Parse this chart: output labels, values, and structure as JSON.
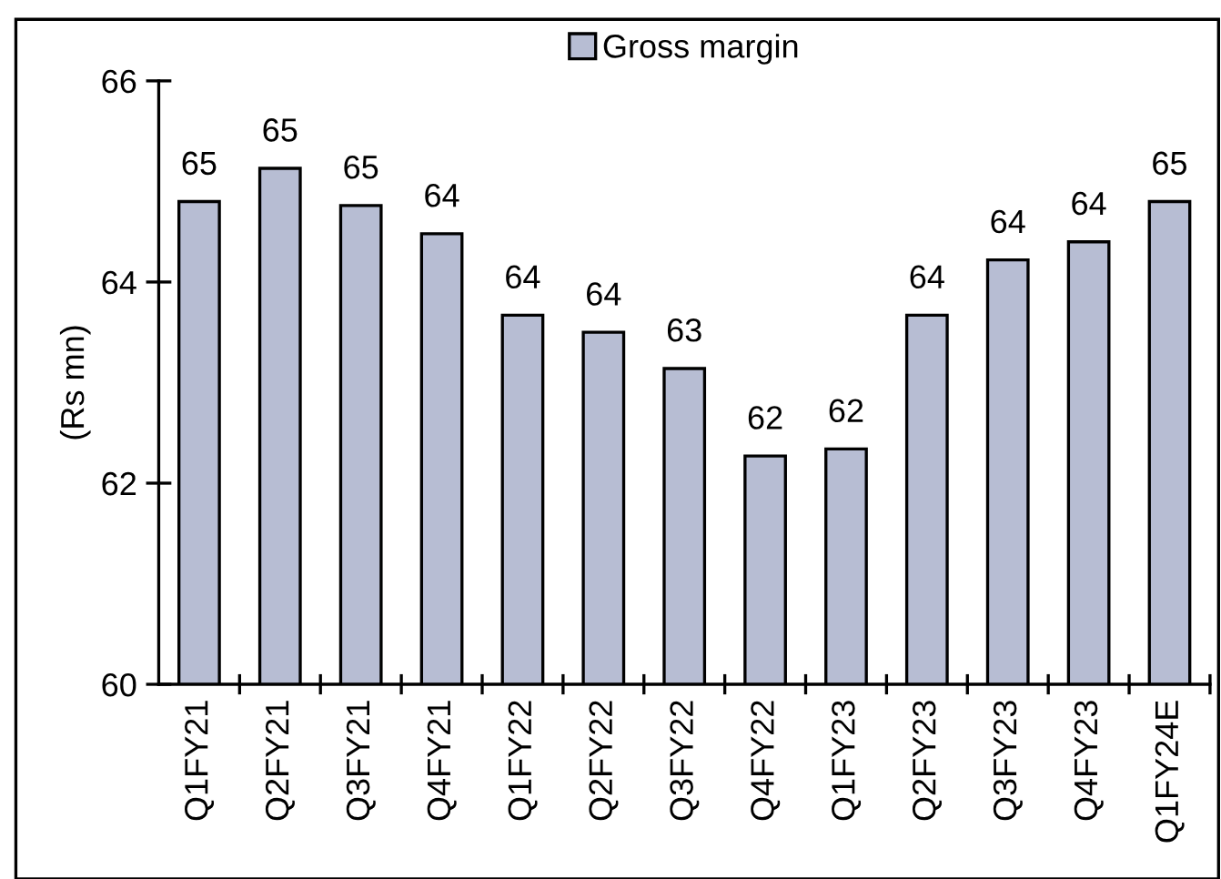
{
  "chart_data": {
    "type": "bar",
    "ylabel": "(Rs mn)",
    "categories": [
      "Q1FY21",
      "Q2FY21",
      "Q3FY21",
      "Q4FY21",
      "Q1FY22",
      "Q2FY22",
      "Q3FY22",
      "Q4FY22",
      "Q1FY23",
      "Q2FY23",
      "Q3FY23",
      "Q4FY23",
      "Q1FY24E"
    ],
    "series": [
      {
        "name": "Gross margin",
        "color": "#b7bdd3",
        "values": [
          64.8,
          65.13,
          64.76,
          64.48,
          63.67,
          63.5,
          63.14,
          62.27,
          62.34,
          63.67,
          64.22,
          64.4,
          64.8
        ],
        "value_labels": [
          "65",
          "65",
          "65",
          "64",
          "64",
          "64",
          "63",
          "62",
          "62",
          "64",
          "64",
          "64",
          "65"
        ]
      }
    ],
    "ylim": [
      60,
      66
    ],
    "yticks": [
      60,
      62,
      64,
      66
    ],
    "grid": false,
    "legend": "top"
  }
}
